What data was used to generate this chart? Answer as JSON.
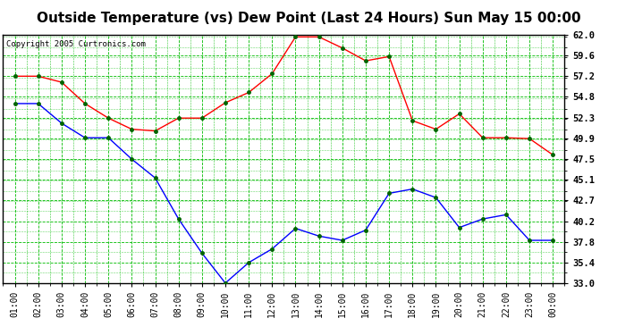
{
  "title": "Outside Temperature (vs) Dew Point (Last 24 Hours) Sun May 15 00:00",
  "copyright": "Copyright 2005 Curtronics.com",
  "x_labels": [
    "01:00",
    "02:00",
    "03:00",
    "04:00",
    "05:00",
    "06:00",
    "07:00",
    "08:00",
    "09:00",
    "10:00",
    "11:00",
    "12:00",
    "13:00",
    "14:00",
    "15:00",
    "16:00",
    "17:00",
    "18:00",
    "19:00",
    "20:00",
    "21:00",
    "22:00",
    "23:00",
    "00:00"
  ],
  "red_data": [
    57.2,
    57.2,
    56.5,
    54.0,
    52.3,
    51.0,
    50.8,
    52.3,
    52.3,
    54.1,
    55.3,
    57.5,
    61.8,
    61.8,
    60.5,
    59.0,
    59.5,
    52.0,
    51.0,
    52.8,
    50.0,
    50.0,
    49.9,
    48.0
  ],
  "blue_data": [
    54.0,
    54.0,
    51.7,
    50.0,
    50.0,
    47.5,
    45.3,
    40.5,
    36.5,
    33.0,
    35.4,
    37.0,
    39.4,
    38.5,
    38.0,
    39.2,
    43.5,
    44.0,
    43.0,
    39.5,
    40.5,
    41.0,
    38.0,
    38.0
  ],
  "ylim": [
    33.0,
    62.0
  ],
  "yticks": [
    33.0,
    35.4,
    37.8,
    40.2,
    42.7,
    45.1,
    47.5,
    49.9,
    52.3,
    54.8,
    57.2,
    59.6,
    62.0
  ],
  "bg_color": "#ffffff",
  "plot_bg": "#ffffff",
  "grid_color": "#00bb00",
  "red_color": "#ff0000",
  "blue_color": "#0000ff",
  "title_fontsize": 11,
  "marker_color": "#006400"
}
